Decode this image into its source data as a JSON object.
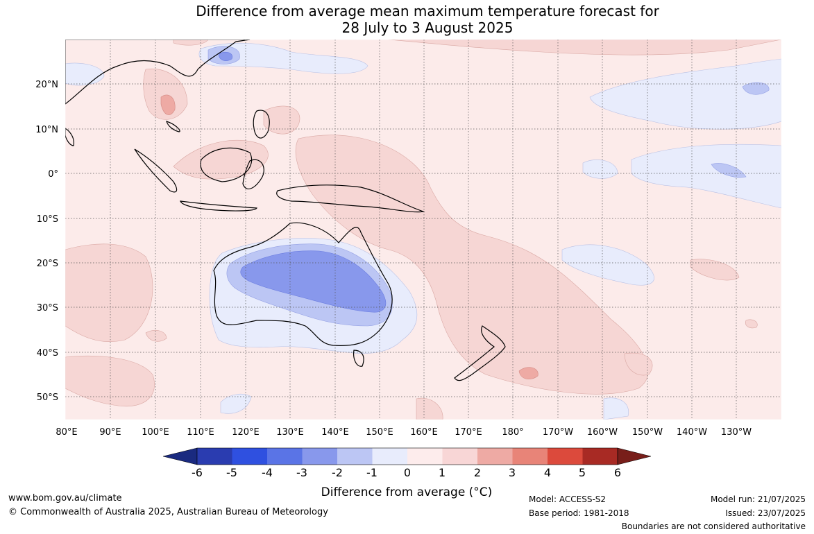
{
  "title": {
    "line1": "Difference from average mean maximum temperature forecast for",
    "line2": "28 July to 3 August 2025"
  },
  "axes": {
    "lon_labels": [
      "80°E",
      "90°E",
      "100°E",
      "110°E",
      "120°E",
      "130°E",
      "140°E",
      "150°E",
      "160°E",
      "170°E",
      "180°",
      "170°W",
      "160°W",
      "150°W",
      "140°W",
      "130°W"
    ],
    "lat_labels": [
      "20°N",
      "10°N",
      "0°",
      "10°S",
      "20°S",
      "30°S",
      "40°S",
      "50°S"
    ]
  },
  "colorbar": {
    "label": "Difference from average (°C)",
    "ticks": [
      "-6",
      "-5",
      "-4",
      "-3",
      "-2",
      "-1",
      "0",
      "1",
      "2",
      "3",
      "4",
      "5",
      "6"
    ],
    "colors": [
      "#1a2a80",
      "#2a3cb0",
      "#2f50e0",
      "#5a74e6",
      "#8898ec",
      "#bcc6f4",
      "#e8ecfc",
      "#fdecec",
      "#f8d6d6",
      "#eeaaa4",
      "#e88478",
      "#dc4a3c",
      "#a82a24",
      "#781e1a"
    ]
  },
  "footer": {
    "website": "www.bom.gov.au/climate",
    "copyright": "© Commonwealth of Australia 2025, Australian Bureau of Meteorology",
    "model": "Model: ACCESS-S2",
    "base_period": "Base period: 1981-2018",
    "model_run": "Model run: 21/07/2025",
    "issued": "Issued: 23/07/2025",
    "disclaimer": "Boundaries are not considered authoritative"
  }
}
